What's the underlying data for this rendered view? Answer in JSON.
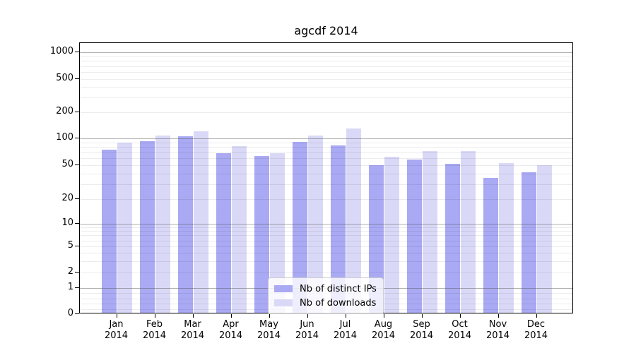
{
  "chart_data": {
    "type": "bar",
    "title": "agcdf 2014",
    "categories": [
      "Jan 2014",
      "Feb 2014",
      "Mar 2014",
      "Apr 2014",
      "May 2014",
      "Jun 2014",
      "Jul 2014",
      "Aug 2014",
      "Sep 2014",
      "Oct 2014",
      "Nov 2014",
      "Dec 2014"
    ],
    "series": [
      {
        "name": "Nb of distinct IPs",
        "color": "#a9a9f4",
        "values": [
          72,
          90,
          101,
          66,
          61,
          88,
          81,
          48,
          56,
          50,
          34,
          40
        ]
      },
      {
        "name": "Nb of downloads",
        "color": "#d9d9f7",
        "values": [
          86,
          103,
          117,
          79,
          66,
          104,
          125,
          60,
          70,
          70,
          51,
          48
        ]
      }
    ],
    "xlabel": "",
    "ylabel": "",
    "yticks": [
      0,
      1,
      2,
      5,
      10,
      20,
      50,
      100,
      200,
      500,
      1000
    ],
    "yscale": "log above 1, linear 0-1 (symlog-like)",
    "ylim": [
      0,
      1250
    ],
    "grid": "horizontal major (decades, gray) and minor (light gray) lines, drawn over bars",
    "legend_position": "lower center inside plot"
  },
  "legend": {
    "items": [
      {
        "label": "Nb of distinct IPs",
        "color": "#a9a9f4"
      },
      {
        "label": "Nb of downloads",
        "color": "#d9d9f7"
      }
    ]
  },
  "colors": {
    "bar_distinct_ips": "#a9a9f4",
    "bar_downloads": "#d9d9f7",
    "major_grid": "#b0b0b0",
    "minor_grid": "#ececec",
    "axis": "#000000",
    "background": "#ffffff"
  }
}
